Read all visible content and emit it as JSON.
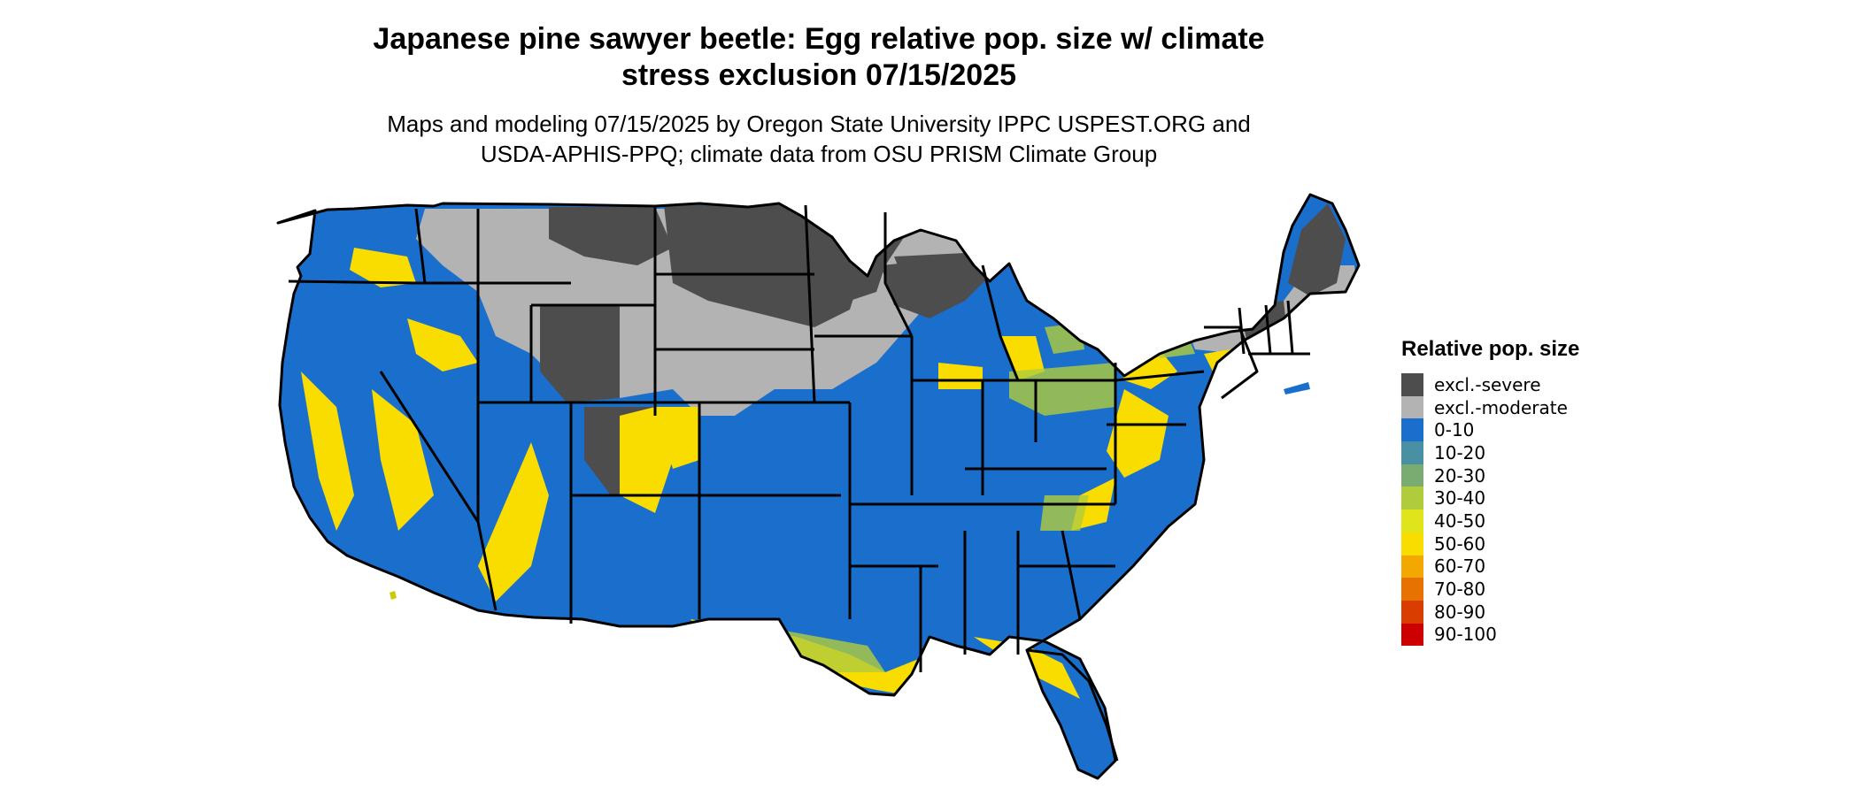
{
  "title_line1": "Japanese pine sawyer beetle: Egg relative pop. size w/ climate",
  "title_line2": "stress exclusion 07/15/2025",
  "subtitle_line1": "Maps and modeling 07/15/2025 by Oregon State University IPPC USPEST.ORG and",
  "subtitle_line2": "USDA-APHIS-PPQ; climate data from OSU PRISM Climate Group",
  "legend": {
    "title": "Relative pop. size",
    "items": [
      {
        "label": "excl.-severe",
        "color": "#4d4d4d"
      },
      {
        "label": "excl.-moderate",
        "color": "#b3b3b3"
      },
      {
        "label": "0-10",
        "color": "#1b6fcc"
      },
      {
        "label": "10-20",
        "color": "#4a90a4"
      },
      {
        "label": "20-30",
        "color": "#7aab71"
      },
      {
        "label": "30-40",
        "color": "#b0cc3d"
      },
      {
        "label": "40-50",
        "color": "#dfe51a"
      },
      {
        "label": "50-60",
        "color": "#f9dc00"
      },
      {
        "label": "60-70",
        "color": "#f2a800"
      },
      {
        "label": "70-80",
        "color": "#e67300"
      },
      {
        "label": "80-90",
        "color": "#d93d00"
      },
      {
        "label": "90-100",
        "color": "#cc0000"
      }
    ]
  },
  "colors": {
    "border": "#000000",
    "severe": "#4d4d4d",
    "moderate": "#b3b3b3",
    "low": "#1b6fcc",
    "mid": "#7aab71",
    "high": "#f9dc00"
  }
}
